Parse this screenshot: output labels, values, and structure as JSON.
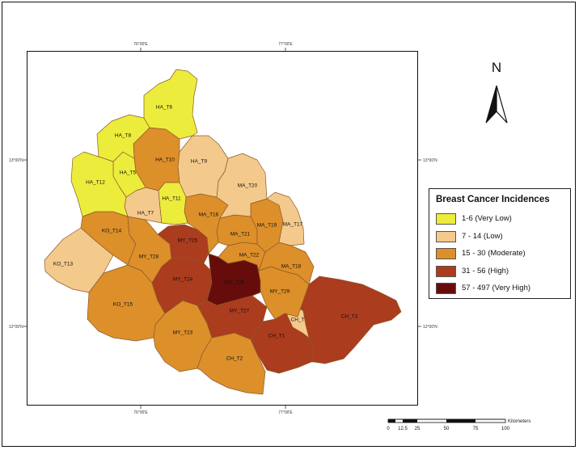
{
  "map": {
    "graticule": {
      "lon_top_left": "76°00'E",
      "lon_top_right": "77°00'E",
      "lon_bottom_left": "76°00'E",
      "lon_bottom_right": "77°00'E",
      "lat_left_upper": "13°00'N",
      "lat_left_lower": "12°00'N",
      "lat_right_upper": "13°00'N",
      "lat_right_lower": "12°00'N"
    },
    "north_arrow_label": "N",
    "districts": [
      {
        "id": "HA_T6",
        "class": 0
      },
      {
        "id": "HA_T8",
        "class": 0
      },
      {
        "id": "HA_T5",
        "class": 0
      },
      {
        "id": "HA_T12",
        "class": 0
      },
      {
        "id": "HA_T11",
        "class": 0
      },
      {
        "id": "HA_T10",
        "class": 2
      },
      {
        "id": "HA_T9",
        "class": 1
      },
      {
        "id": "HA_T7",
        "class": 1
      },
      {
        "id": "MA_T20",
        "class": 1
      },
      {
        "id": "MA_T17",
        "class": 1
      },
      {
        "id": "MA_T16",
        "class": 2
      },
      {
        "id": "MA_T19",
        "class": 2
      },
      {
        "id": "MA_T21",
        "class": 2
      },
      {
        "id": "MA_T22",
        "class": 2
      },
      {
        "id": "MA_T18",
        "class": 2
      },
      {
        "id": "KO_T14",
        "class": 2
      },
      {
        "id": "KO_T13",
        "class": 1
      },
      {
        "id": "KO_T15",
        "class": 2
      },
      {
        "id": "MY_T28",
        "class": 2
      },
      {
        "id": "MY_T25",
        "class": 3
      },
      {
        "id": "MY_T24",
        "class": 3
      },
      {
        "id": "MY_T26",
        "class": 4
      },
      {
        "id": "MY_T29",
        "class": 2
      },
      {
        "id": "MY_T27",
        "class": 3
      },
      {
        "id": "MY_T23",
        "class": 2
      },
      {
        "id": "CH_T1",
        "class": 3
      },
      {
        "id": "CH_T",
        "class": 1
      },
      {
        "id": "CH_T3",
        "class": 3
      },
      {
        "id": "CH_T2",
        "class": 2
      }
    ]
  },
  "legend": {
    "title": "Breast Cancer Incidences",
    "items": [
      {
        "label": "1-6 (Very Low)",
        "color": "#ecec3c"
      },
      {
        "label": "7 - 14 (Low)",
        "color": "#f4c98c"
      },
      {
        "label": "15 - 30 (Moderate)",
        "color": "#dd8f2a"
      },
      {
        "label": "31 - 56 (High)",
        "color": "#ab3c1e"
      },
      {
        "label": "57 - 497 (Very High)",
        "color": "#660d0c"
      }
    ]
  },
  "scale_bar": {
    "unit": "Kilometers",
    "ticks": [
      "0",
      "12.5",
      "25",
      "50",
      "75",
      "100"
    ]
  }
}
